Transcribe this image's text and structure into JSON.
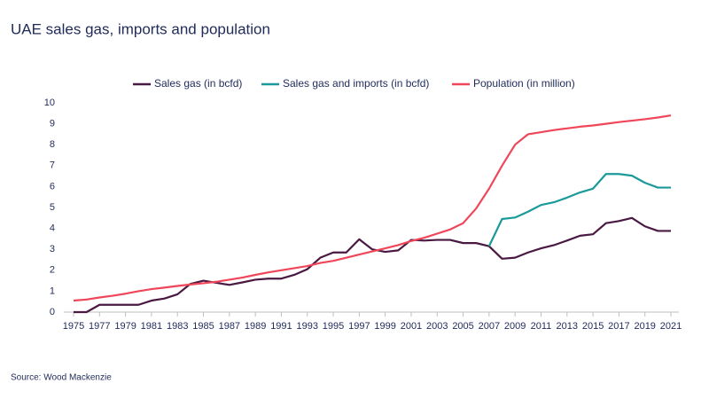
{
  "chart_data": {
    "type": "line",
    "title": "UAE sales gas, imports and population",
    "source": "Source: Wood Mackenzie",
    "x": [
      1975,
      1976,
      1977,
      1978,
      1979,
      1980,
      1981,
      1982,
      1983,
      1984,
      1985,
      1986,
      1987,
      1988,
      1989,
      1990,
      1991,
      1992,
      1993,
      1994,
      1995,
      1996,
      1997,
      1998,
      1999,
      2000,
      2001,
      2002,
      2003,
      2004,
      2005,
      2006,
      2007,
      2008,
      2009,
      2010,
      2011,
      2012,
      2013,
      2014,
      2015,
      2016,
      2017,
      2018,
      2019,
      2020,
      2021
    ],
    "series": [
      {
        "name": "Sales gas (in bcfd)",
        "color": "#4a1942",
        "values": [
          0,
          0,
          0.35,
          0.35,
          0.35,
          0.35,
          0.55,
          0.65,
          0.85,
          1.35,
          1.5,
          1.4,
          1.3,
          1.42,
          1.55,
          1.6,
          1.6,
          1.78,
          2.05,
          2.6,
          2.85,
          2.85,
          3.48,
          3.0,
          2.88,
          2.95,
          3.45,
          3.42,
          3.45,
          3.45,
          3.3,
          3.3,
          3.15,
          2.55,
          2.6,
          2.85,
          3.05,
          3.2,
          3.42,
          3.65,
          3.72,
          4.25,
          4.35,
          4.5,
          4.1,
          3.88,
          3.88
        ]
      },
      {
        "name": "Sales gas and imports (in bcfd)",
        "color": "#1a9a9a",
        "values": [
          null,
          null,
          null,
          null,
          null,
          null,
          null,
          null,
          null,
          null,
          null,
          null,
          null,
          null,
          null,
          null,
          null,
          null,
          null,
          null,
          null,
          null,
          null,
          null,
          null,
          null,
          null,
          null,
          null,
          null,
          null,
          null,
          3.15,
          4.45,
          4.52,
          4.8,
          5.12,
          5.25,
          5.47,
          5.72,
          5.9,
          6.6,
          6.6,
          6.52,
          6.18,
          5.95,
          5.95
        ]
      },
      {
        "name": "Population (in million)",
        "color": "#f0465a",
        "values": [
          0.55,
          0.6,
          0.7,
          0.78,
          0.88,
          1.0,
          1.1,
          1.17,
          1.25,
          1.32,
          1.38,
          1.45,
          1.55,
          1.65,
          1.78,
          1.9,
          2.0,
          2.1,
          2.2,
          2.35,
          2.45,
          2.6,
          2.75,
          2.9,
          3.05,
          3.2,
          3.4,
          3.55,
          3.75,
          3.95,
          4.25,
          4.95,
          5.9,
          7.0,
          8.0,
          8.5,
          8.6,
          8.7,
          8.78,
          8.86,
          8.92,
          9.0,
          9.08,
          9.15,
          9.22,
          9.3,
          9.4
        ]
      }
    ],
    "xlim": [
      1975,
      2021
    ],
    "xticks": [
      1975,
      1977,
      1979,
      1981,
      1983,
      1985,
      1987,
      1989,
      1991,
      1993,
      1995,
      1997,
      1999,
      2001,
      2003,
      2005,
      2007,
      2009,
      2011,
      2013,
      2015,
      2017,
      2019,
      2021
    ],
    "ylim": [
      0,
      10
    ],
    "yticks": [
      0,
      1,
      2,
      3,
      4,
      5,
      6,
      7,
      8,
      9,
      10
    ],
    "grid": false,
    "legend": "top"
  }
}
